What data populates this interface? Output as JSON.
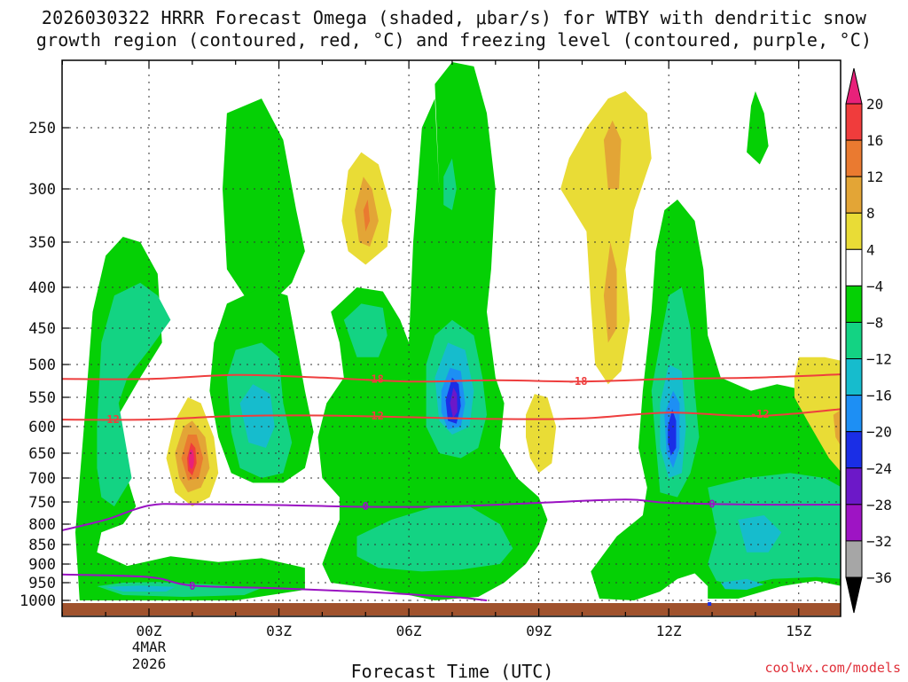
{
  "chart_data": {
    "type": "heatmap",
    "title": "2026030322 HRRR Forecast Omega (shaded, μbar/s) for WTBY with dendritic snow",
    "title_line2": "growth region (contoured, red, °C) and freezing level (contoured, purple, °C)",
    "xlabel": "Forecast Time (UTC)",
    "ylabel": "",
    "credit": "coolwx.com/models",
    "x_range_hours": [
      -2,
      16
    ],
    "y_range_hpa": [
      205,
      1015
    ],
    "y_ticks": [
      250,
      300,
      350,
      400,
      450,
      500,
      550,
      600,
      650,
      700,
      750,
      800,
      850,
      900,
      950,
      1000
    ],
    "x_ticks": [
      {
        "hour": 0,
        "label": "00Z"
      },
      {
        "hour": 3,
        "label": "03Z"
      },
      {
        "hour": 6,
        "label": "06Z"
      },
      {
        "hour": 9,
        "label": "09Z"
      },
      {
        "hour": 12,
        "label": "12Z"
      },
      {
        "hour": 15,
        "label": "15Z"
      }
    ],
    "date_label_1": "4MAR",
    "date_label_2": "2026",
    "colorbar": {
      "labels": [
        "20",
        "16",
        "12",
        "8",
        "4",
        "−4",
        "−8",
        "−12",
        "−16",
        "−20",
        "−24",
        "−28",
        "−32",
        "−36"
      ],
      "bins": [
        {
          "range": "16 to 20",
          "color": "#f03c3c"
        },
        {
          "range": "12 to 16",
          "color": "#ea7a30"
        },
        {
          "range": "8 to 12",
          "color": "#e3a536"
        },
        {
          "range": "4 to 8",
          "color": "#e9dc36"
        },
        {
          "range": "-4 to 4",
          "color": "#ffffff"
        },
        {
          "range": "-8 to -4",
          "color": "#05d005"
        },
        {
          "range": "-12 to -8",
          "color": "#13d383"
        },
        {
          "range": "-16 to -12",
          "color": "#16bccd"
        },
        {
          "range": "-20 to -16",
          "color": "#1d8ff4"
        },
        {
          "range": "-24 to -20",
          "color": "#1a2ee6"
        },
        {
          "range": "-28 to -24",
          "color": "#6c18c8"
        },
        {
          "range": "-32 to -28",
          "color": "#9e14c4"
        },
        {
          "range": "-36 to -32",
          "color": "#a6a6a6"
        }
      ],
      "over_color": "#e8217a",
      "under_color": "#000000"
    },
    "shaded_regions": [
      {
        "name": "descent core near 01Z",
        "center_hour": 1.0,
        "center_hpa": 660,
        "peak": 20
      },
      {
        "name": "ascent column near 07Z",
        "center_hour": 7.0,
        "center_hpa": 550,
        "peak": -28
      },
      {
        "name": "ascent column near 12Z",
        "center_hour": 12.0,
        "center_hpa": 620,
        "peak": -24
      },
      {
        "name": "descent near 05Z aloft",
        "center_hour": 5.0,
        "center_hpa": 320,
        "peak": 14
      },
      {
        "name": "descent 10Z-11Z aloft",
        "center_hour": 10.8,
        "center_hpa": 350,
        "peak": 12
      },
      {
        "name": "descent near 15.5Z",
        "center_hour": 15.7,
        "center_hpa": 560,
        "peak": 8
      }
    ],
    "contours": [
      {
        "name": "DGZ top",
        "level": "-18",
        "color": "#ee3e3e",
        "x": [
          -2,
          0,
          2,
          4,
          6,
          8,
          10,
          12,
          14,
          16
        ],
        "y": [
          522,
          522,
          516,
          520,
          526,
          524,
          526,
          522,
          520,
          515
        ]
      },
      {
        "name": "DGZ bottom",
        "level": "-12",
        "color": "#ee3e3e",
        "x": [
          -2,
          0,
          2,
          4,
          6,
          8,
          10,
          12,
          14,
          16
        ],
        "y": [
          588,
          588,
          582,
          581,
          584,
          587,
          586,
          576,
          582,
          570
        ]
      },
      {
        "name": "freezing level upper",
        "level": "0",
        "color": "#9a12c2",
        "x": [
          -2,
          -1,
          0,
          1,
          3,
          5,
          7,
          9,
          11,
          12,
          14,
          16
        ],
        "y": [
          815,
          790,
          758,
          755,
          757,
          761,
          760,
          752,
          745,
          752,
          756,
          756
        ]
      },
      {
        "name": "freezing level lower",
        "level": "0",
        "color": "#9a12c2",
        "x": [
          -2,
          0,
          1,
          3,
          5,
          7,
          7.8
        ],
        "y": [
          928,
          935,
          958,
          966,
          976,
          990,
          1000
        ]
      }
    ],
    "contour_labels": [
      {
        "text": "-18",
        "hour": 5.2,
        "hpa": 522,
        "color": "#ee3e3e"
      },
      {
        "text": "-18",
        "hour": 9.9,
        "hpa": 526,
        "color": "#ee3e3e"
      },
      {
        "text": "-12",
        "hour": -0.9,
        "hpa": 588,
        "color": "#ee3e3e"
      },
      {
        "text": "-12",
        "hour": 5.2,
        "hpa": 582,
        "color": "#ee3e3e"
      },
      {
        "text": "-12",
        "hour": 14.1,
        "hpa": 579,
        "color": "#ee3e3e"
      },
      {
        "text": "0",
        "hour": 5.0,
        "hpa": 760,
        "color": "#9a12c2"
      },
      {
        "text": "0",
        "hour": 13.0,
        "hpa": 755,
        "color": "#9a12c2"
      },
      {
        "text": "0",
        "hour": 1.0,
        "hpa": 960,
        "color": "#9a12c2"
      }
    ],
    "terrain_color": "#a0522d"
  }
}
